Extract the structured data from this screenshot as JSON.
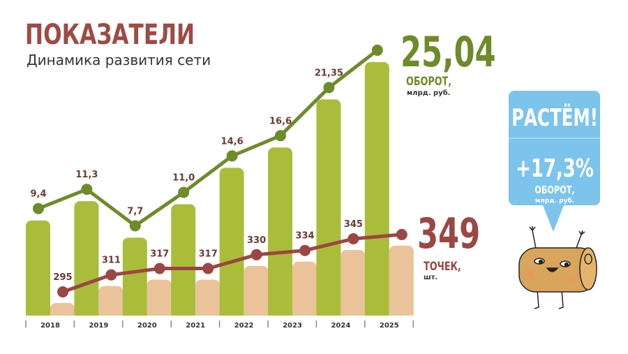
{
  "header": {
    "title": "ПОКАЗАТЕЛИ",
    "subtitle": "Динамика развития сети"
  },
  "colors": {
    "title": "#9e4a45",
    "green_line": "#6e8b2a",
    "green_bar": "#aabd3b",
    "red_line": "#9b4743",
    "peach_bar": "#ebc39a",
    "label_brown": "#6b3b2f",
    "bubble": "#7cc4ec"
  },
  "turnover": {
    "value": "25,04",
    "label": "ОБОРОТ,",
    "unit": "млрд. руб."
  },
  "points": {
    "value": "349",
    "label": "ТОЧЕК,",
    "unit": "шт."
  },
  "bubble": {
    "title": "РАСТЁМ!",
    "value": "+17,3%",
    "label": "ОБОРОТ,",
    "unit": "млрд. руб."
  },
  "mascot": "roll-mascot",
  "chart_data": {
    "type": "bar",
    "categories": [
      "2018",
      "2019",
      "2020",
      "2021",
      "2022",
      "2023",
      "2024",
      "2025"
    ],
    "series": [
      {
        "name": "Оборот, млрд. руб.",
        "values": [
          9.4,
          11.3,
          7.7,
          11.0,
          14.6,
          16.6,
          21.35,
          25.04
        ],
        "labels": [
          "9,4",
          "11,3",
          "7,7",
          "11,0",
          "14,6",
          "16,6",
          "21,35",
          ""
        ]
      },
      {
        "name": "Точек, шт.",
        "values": [
          295,
          311,
          317,
          317,
          330,
          334,
          345,
          349
        ],
        "labels": [
          "295",
          "311",
          "317",
          "317",
          "330",
          "334",
          "345",
          ""
        ]
      }
    ],
    "title": "Динамика развития сети",
    "xlabel": "",
    "ylabel": "",
    "grid": false
  }
}
